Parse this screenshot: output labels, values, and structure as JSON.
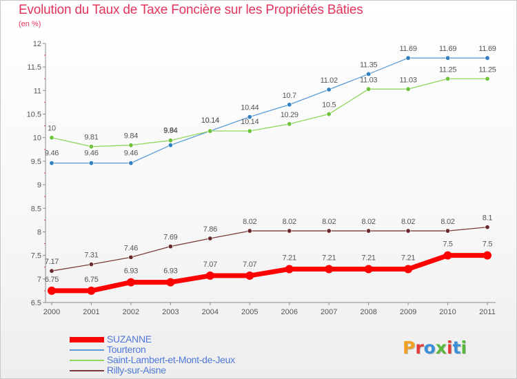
{
  "header": {
    "title": "Evolution du Taux de Taxe Foncière sur les Propriétés Bâties",
    "unit": "(en %)"
  },
  "brand": {
    "text": "Proxiti",
    "colors": [
      "#f0a020",
      "#e03b3b",
      "#3a8fd8",
      "#57b83c",
      "#e03b3b",
      "#3a8fd8",
      "#57b83c"
    ]
  },
  "chart_data": {
    "type": "line",
    "x": [
      "2000",
      "2001",
      "2002",
      "2003",
      "2004",
      "2005",
      "2006",
      "2007",
      "2008",
      "2009",
      "2010",
      "2011"
    ],
    "ylim": [
      6.5,
      12
    ],
    "yticks": [
      "6.5",
      "7",
      "7.5",
      "8",
      "8.5",
      "9",
      "9.5",
      "10",
      "10.5",
      "11",
      "11.5",
      "12"
    ],
    "grid": false,
    "legend_position": "bottom-left",
    "series": [
      {
        "name": "SUZANNE",
        "color": "#ff0000",
        "values": [
          6.75,
          6.75,
          6.93,
          6.93,
          7.07,
          7.07,
          7.21,
          7.21,
          7.21,
          7.21,
          7.5,
          7.5
        ],
        "labels": [
          "6.75",
          "6.75",
          "6.93",
          "6.93",
          "7.07",
          "7.07",
          "7.21",
          "7.21",
          "7.21",
          "7.21",
          "7.5",
          "7.5"
        ]
      },
      {
        "name": "Tourteron",
        "color": "#5b9bd5",
        "marker": "#2f7fc1",
        "values": [
          9.46,
          9.46,
          9.46,
          9.84,
          10.14,
          10.44,
          10.7,
          11.02,
          11.35,
          11.69,
          11.69,
          11.69
        ],
        "labels": [
          "9.46",
          "9.46",
          "9.46",
          "9.84",
          "10.14",
          "10.44",
          "10.7",
          "11.02",
          "11.35",
          "11.69",
          "11.69",
          "11.69"
        ]
      },
      {
        "name": "Saint-Lambert-et-Mont-de-Jeux",
        "color": "#8fd65a",
        "marker": "#6cc23a",
        "values": [
          10,
          9.81,
          9.84,
          9.94,
          10.14,
          10.14,
          10.29,
          10.5,
          11.03,
          11.03,
          11.25,
          11.25
        ],
        "labels": [
          "10",
          "9.81",
          "9.84",
          "9.94",
          "10.14",
          "10.14",
          "10.29",
          "10.5",
          "11.03",
          "11.03",
          "11.25",
          "11.25"
        ]
      },
      {
        "name": "Rilly-sur-Aisne",
        "color": "#7a3a3a",
        "marker": "#6a2a2a",
        "values": [
          7.17,
          7.31,
          7.46,
          7.69,
          7.86,
          8.02,
          8.02,
          8.02,
          8.02,
          8.02,
          8.02,
          8.1
        ],
        "labels": [
          "7.17",
          "7.31",
          "7.46",
          "7.69",
          "7.86",
          "8.02",
          "8.02",
          "8.02",
          "8.02",
          "8.02",
          "8.02",
          "8.1"
        ]
      }
    ]
  }
}
